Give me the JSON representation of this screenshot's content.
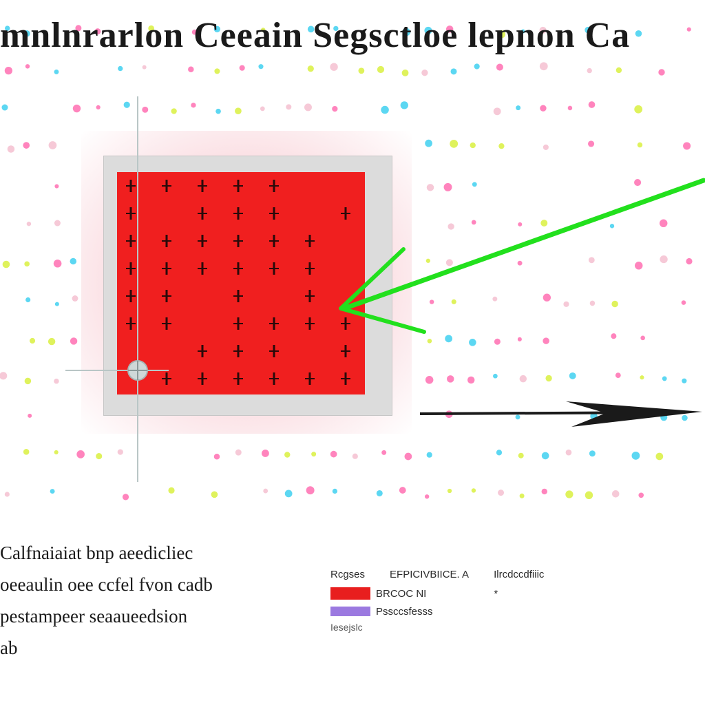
{
  "title": "mnlnrarlon Ceeain Segsctloe lepnon Ca",
  "caption": {
    "lines": [
      "Calfnaiaiat bnp aeedicliec",
      "oeeaulin oee ccfel fvon cadb",
      "pestampeer seaaueedsion",
      "ab"
    ]
  },
  "legend": {
    "header": [
      "Rcgses",
      "EFPICIVBIICE. A",
      "Ilrcdccdfiiic"
    ],
    "items": [
      {
        "color": "#e81e1e",
        "label": "BRCOC NI",
        "note": "*"
      },
      {
        "color": "#9b79e0",
        "label": "Pssccsfesss"
      }
    ],
    "footer": "Iesejslc"
  },
  "colors": {
    "square": "#f01f1f",
    "halo": "#f6c7cf",
    "arrow_green": "#22e01d",
    "arrow_black": "#1a1a1a",
    "dots": [
      "#ff6fb1",
      "#3fd0f0",
      "#f5c0d0",
      "#d9f040"
    ]
  },
  "icons": {
    "crosshair": "crosshair-icon",
    "green_arrow": "arrow-left-icon",
    "black_arrow": "arrow-right-icon"
  }
}
